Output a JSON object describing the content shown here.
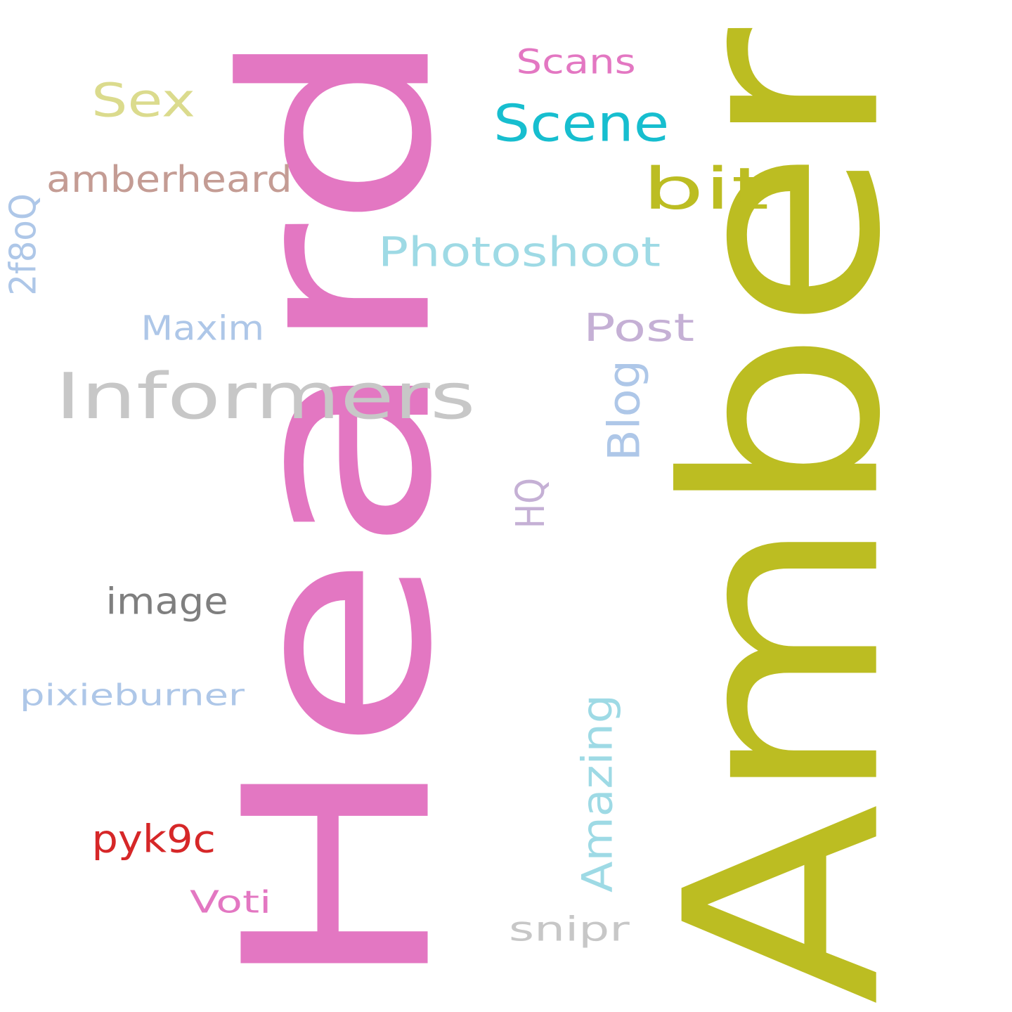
{
  "words": [
    {
      "id": "amber",
      "text": "Amber",
      "color": "#bcbd22",
      "orientation": "vertical"
    },
    {
      "id": "heard",
      "text": "Heard",
      "color": "#e377c2",
      "orientation": "vertical"
    },
    {
      "id": "informers",
      "text": "Informers",
      "color": "#c7c7c7",
      "orientation": "horizontal"
    },
    {
      "id": "photoshoot",
      "text": "Photoshoot",
      "color": "#9edae5",
      "orientation": "horizontal"
    },
    {
      "id": "scene",
      "text": "Scene",
      "color": "#17becf",
      "orientation": "horizontal"
    },
    {
      "id": "bit",
      "text": "bit",
      "color": "#bcbd22",
      "orientation": "horizontal"
    },
    {
      "id": "sex",
      "text": "Sex",
      "color": "#dbdb8d",
      "orientation": "horizontal"
    },
    {
      "id": "scans",
      "text": "Scans",
      "color": "#e377c2",
      "orientation": "horizontal"
    },
    {
      "id": "amberheard",
      "text": "amberheard",
      "color": "#c49c94",
      "orientation": "horizontal"
    },
    {
      "id": "2f8oq",
      "text": "2f8oQ",
      "color": "#aec7e8",
      "orientation": "vertical"
    },
    {
      "id": "maxim",
      "text": "Maxim",
      "color": "#aec7e8",
      "orientation": "horizontal"
    },
    {
      "id": "post",
      "text": "Post",
      "color": "#c5b0d5",
      "orientation": "horizontal"
    },
    {
      "id": "blog",
      "text": "Blog",
      "color": "#aec7e8",
      "orientation": "vertical"
    },
    {
      "id": "hq",
      "text": "HQ",
      "color": "#c5b0d5",
      "orientation": "vertical"
    },
    {
      "id": "image",
      "text": "image",
      "color": "#7f7f7f",
      "orientation": "horizontal"
    },
    {
      "id": "pixieburner",
      "text": "pixieburner",
      "color": "#aec7e8",
      "orientation": "horizontal"
    },
    {
      "id": "amazing",
      "text": "Amazing",
      "color": "#9edae5",
      "orientation": "vertical"
    },
    {
      "id": "pyk9c",
      "text": "pyk9c",
      "color": "#d62728",
      "orientation": "horizontal"
    },
    {
      "id": "voti",
      "text": "Voti",
      "color": "#e377c2",
      "orientation": "horizontal"
    },
    {
      "id": "snipr",
      "text": "snipr",
      "color": "#c7c7c7",
      "orientation": "horizontal"
    }
  ]
}
